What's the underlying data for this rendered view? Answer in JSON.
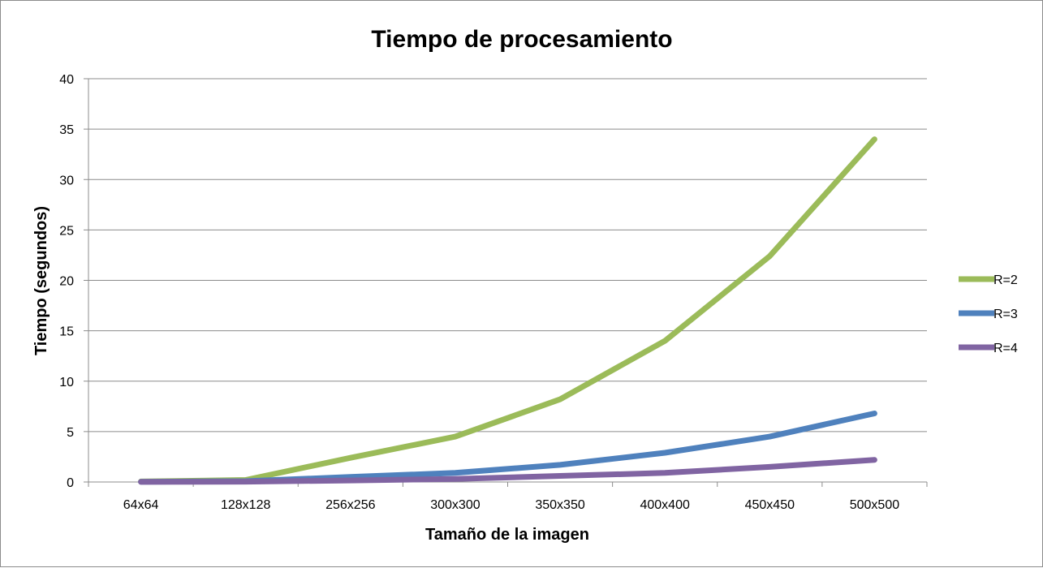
{
  "chart_data": {
    "type": "line",
    "title": "Tiempo de procesamiento",
    "xlabel": "Tamaño de la imagen",
    "ylabel": "Tiempo (segundos)",
    "categories": [
      "64x64",
      "128x128",
      "256x256",
      "300x300",
      "350x350",
      "400x400",
      "450x450",
      "500x500"
    ],
    "ylim": [
      0,
      40
    ],
    "yticks": [
      0,
      5,
      10,
      15,
      20,
      25,
      30,
      35,
      40
    ],
    "grid": true,
    "legend_position": "right",
    "series": [
      {
        "name": "R=2",
        "color": "#9bbb59",
        "values": [
          0.05,
          0.2,
          2.4,
          4.5,
          8.2,
          14.0,
          22.4,
          34.0
        ]
      },
      {
        "name": "R=3",
        "color": "#4f81bd",
        "values": [
          0.02,
          0.08,
          0.5,
          0.9,
          1.7,
          2.9,
          4.5,
          6.8
        ]
      },
      {
        "name": "R=4",
        "color": "#8064a2",
        "values": [
          0.01,
          0.03,
          0.15,
          0.3,
          0.6,
          0.9,
          1.5,
          2.2
        ]
      }
    ]
  }
}
